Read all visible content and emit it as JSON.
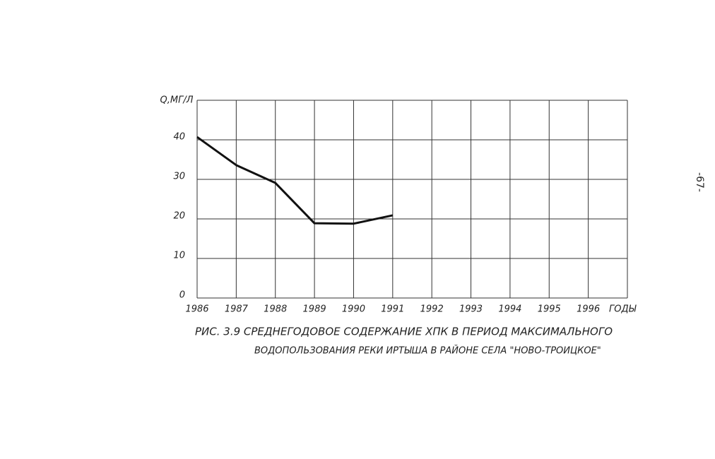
{
  "chart_data": {
    "type": "line",
    "title_lines": [
      "РИС. 3.9 СРЕДНЕГОДОВОЕ СОДЕРЖАНИЕ ХПК В ПЕРИОД МАКСИМАЛЬНОГО",
      "ВОДОПОЛЬЗОВАНИЯ РЕКИ ИРТЫША В РАЙОНЕ СЕЛА \"НОВО-ТРОИЦКОЕ\""
    ],
    "y_label": "Q,МГ/Л",
    "x_label": "ГОДЫ",
    "x": [
      1986,
      1987,
      1988,
      1989,
      1990,
      1991
    ],
    "values": [
      40.7,
      33.6,
      29.1,
      18.9,
      18.8,
      20.9
    ],
    "color": "#111111",
    "xlim": [
      1986,
      1997
    ],
    "xticks": [
      1986,
      1987,
      1988,
      1989,
      1990,
      1991,
      1992,
      1993,
      1994,
      1995,
      1996
    ],
    "ylim": [
      0,
      50
    ],
    "yticks": [
      0,
      10,
      20,
      30,
      40
    ],
    "grid": true
  },
  "page_number": "-67-"
}
